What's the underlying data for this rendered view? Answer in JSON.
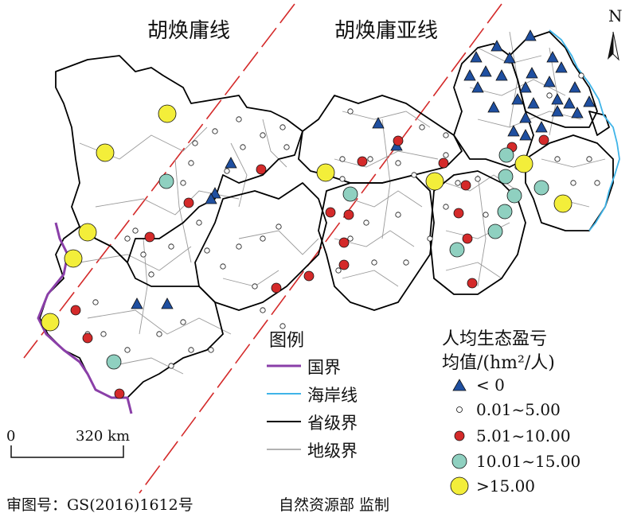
{
  "map": {
    "lines": {
      "hu_line": "胡焕庸线",
      "hu_subline": "胡焕庸亚线"
    },
    "north_label": "N",
    "legend": {
      "title": "图例",
      "boundaries": [
        {
          "label": "国界",
          "color": "#8a3fa8"
        },
        {
          "label": "海岸线",
          "color": "#3fb4e8"
        },
        {
          "label": "省级界",
          "color": "#000000"
        },
        {
          "label": "地级界",
          "color": "#999999"
        }
      ],
      "value_title_line1": "人均生态盈亏",
      "value_title_line2": "均值/(hm²/人)",
      "classes": [
        {
          "label": "< 0",
          "symbol": "triangle",
          "color": "#1f4fa0"
        },
        {
          "label": "0.01~5.00",
          "symbol": "circle-small",
          "color": "#ffffff"
        },
        {
          "label": "5.01~10.00",
          "symbol": "circle-medium",
          "color": "#d42a2a"
        },
        {
          "label": "10.01~15.00",
          "symbol": "circle-large",
          "color": "#8fd0c0"
        },
        {
          "label": ">15.00",
          "symbol": "circle-xlarge",
          "color": "#f3ee3a"
        }
      ]
    },
    "scale": {
      "zero": "0",
      "distance": "320 km"
    },
    "footer": {
      "approval": "审图号：GS(2016)1612号",
      "supervisor": "自然资源部 监制"
    }
  }
}
